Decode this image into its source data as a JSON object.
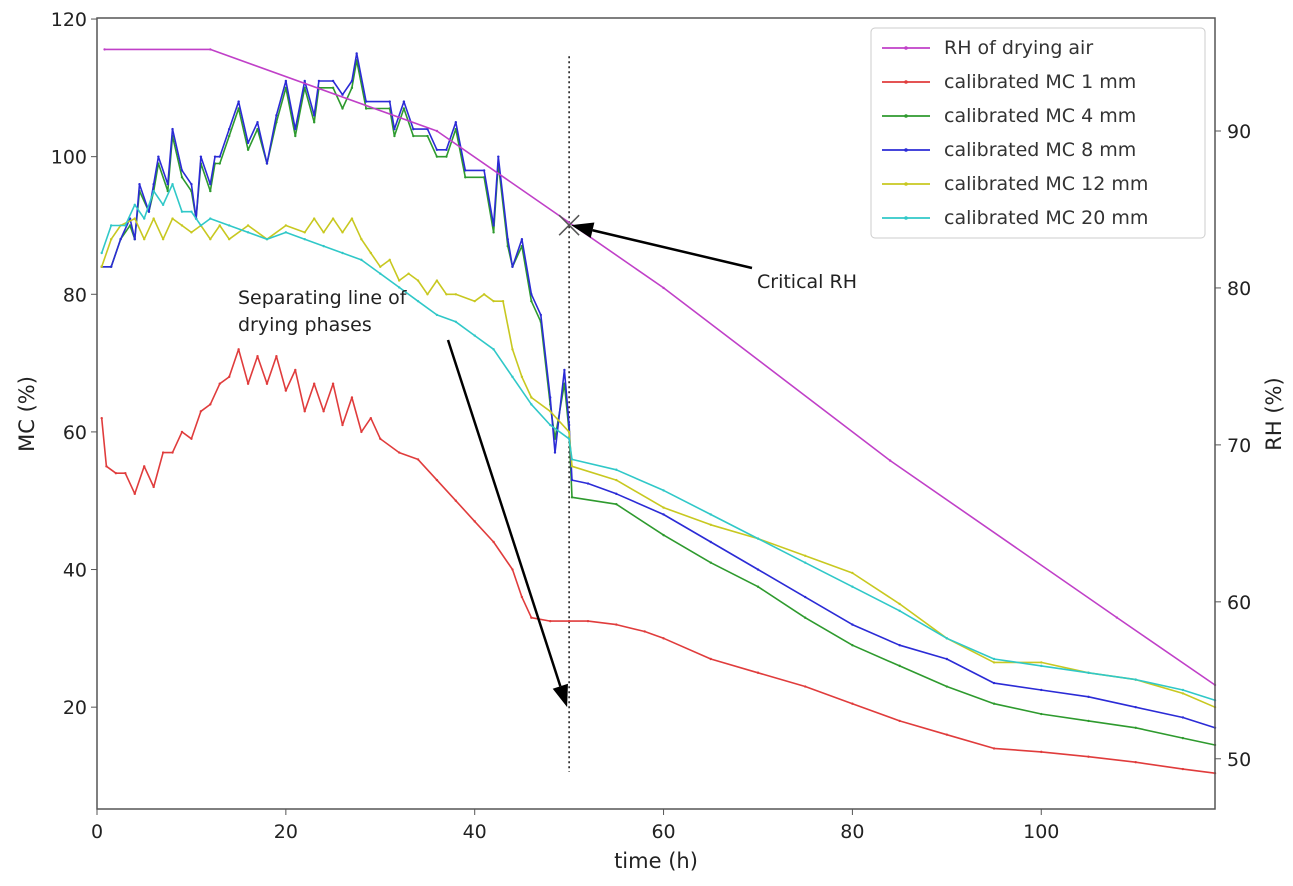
{
  "chart_data": {
    "type": "line",
    "xlabel": "time (h)",
    "ylabel": "MC (%)",
    "y2label": "RH (%)",
    "xlim": [
      0,
      118.4
    ],
    "ylim": [
      5.2,
      120.15
    ],
    "y2lim": [
      46.8,
      97.2
    ],
    "xticks": [
      0,
      20,
      40,
      60,
      80,
      100
    ],
    "yticks": [
      20,
      40,
      60,
      80,
      100,
      120
    ],
    "y2ticks": [
      50,
      60,
      70,
      80,
      90
    ],
    "grid": false,
    "legend_position": "top-right",
    "series": [
      {
        "name": "RH of drying air",
        "axis": "right",
        "color": "#c040c8",
        "points": [
          [
            0.8,
            95.2
          ],
          [
            12,
            95.2
          ],
          [
            36,
            90
          ],
          [
            60,
            80
          ],
          [
            84,
            69
          ],
          [
            108,
            59
          ],
          [
            118.4,
            54.7
          ]
        ]
      },
      {
        "name": "calibrated MC 1 mm",
        "axis": "left",
        "color": "#e03c3c",
        "points": [
          [
            0.5,
            62
          ],
          [
            1,
            55
          ],
          [
            2,
            54
          ],
          [
            3,
            54
          ],
          [
            4,
            51
          ],
          [
            5,
            55
          ],
          [
            6,
            52
          ],
          [
            7,
            57
          ],
          [
            8,
            57
          ],
          [
            9,
            60
          ],
          [
            10,
            59
          ],
          [
            11,
            63
          ],
          [
            12,
            64
          ],
          [
            13,
            67
          ],
          [
            14,
            68
          ],
          [
            15,
            72
          ],
          [
            16,
            67
          ],
          [
            17,
            71
          ],
          [
            18,
            67
          ],
          [
            19,
            71
          ],
          [
            20,
            66
          ],
          [
            21,
            69
          ],
          [
            22,
            63
          ],
          [
            23,
            67
          ],
          [
            24,
            63
          ],
          [
            25,
            67
          ],
          [
            26,
            61
          ],
          [
            27,
            65
          ],
          [
            28,
            60
          ],
          [
            29,
            62
          ],
          [
            30,
            59
          ],
          [
            32,
            57
          ],
          [
            34,
            56
          ],
          [
            36,
            53
          ],
          [
            38,
            50
          ],
          [
            40,
            47
          ],
          [
            42,
            44
          ],
          [
            44,
            40
          ],
          [
            45,
            36
          ],
          [
            46,
            33
          ],
          [
            48,
            32.5
          ],
          [
            50,
            32.5
          ],
          [
            52,
            32.5
          ],
          [
            55,
            32
          ],
          [
            58,
            31
          ],
          [
            60,
            30
          ],
          [
            65,
            27
          ],
          [
            70,
            25
          ],
          [
            75,
            23
          ],
          [
            80,
            20.5
          ],
          [
            85,
            18
          ],
          [
            90,
            16
          ],
          [
            95,
            14
          ],
          [
            100,
            13.5
          ],
          [
            105,
            12.8
          ],
          [
            110,
            12
          ],
          [
            115,
            11
          ],
          [
            118.4,
            10.4
          ]
        ]
      },
      {
        "name": "calibrated MC 4 mm",
        "axis": "left",
        "color": "#2e9a2e",
        "points": [
          [
            0.5,
            84
          ],
          [
            1.5,
            84
          ],
          [
            2.5,
            88
          ],
          [
            3.5,
            90
          ],
          [
            4,
            88
          ],
          [
            4.5,
            95
          ],
          [
            5.5,
            92
          ],
          [
            6,
            95
          ],
          [
            6.5,
            99
          ],
          [
            7.5,
            95
          ],
          [
            8,
            103
          ],
          [
            9,
            97
          ],
          [
            10,
            95
          ],
          [
            10.5,
            91
          ],
          [
            11,
            99
          ],
          [
            12,
            95
          ],
          [
            12.5,
            99
          ],
          [
            13,
            99
          ],
          [
            14,
            103
          ],
          [
            15,
            107
          ],
          [
            16,
            101
          ],
          [
            17,
            104
          ],
          [
            18,
            99
          ],
          [
            19,
            105
          ],
          [
            20,
            110
          ],
          [
            21,
            103
          ],
          [
            22,
            110
          ],
          [
            23,
            105
          ],
          [
            23.5,
            110
          ],
          [
            25,
            110
          ],
          [
            26,
            107
          ],
          [
            27,
            110
          ],
          [
            27.5,
            114
          ],
          [
            28.5,
            107
          ],
          [
            31,
            107
          ],
          [
            31.5,
            103
          ],
          [
            32.5,
            107
          ],
          [
            33.5,
            103
          ],
          [
            35,
            103
          ],
          [
            36,
            100
          ],
          [
            37,
            100
          ],
          [
            38,
            104
          ],
          [
            39,
            97
          ],
          [
            41,
            97
          ],
          [
            42,
            89
          ],
          [
            42.5,
            99
          ],
          [
            43.5,
            87
          ],
          [
            44,
            84
          ],
          [
            45,
            87
          ],
          [
            46,
            79
          ],
          [
            47,
            76
          ],
          [
            48,
            64
          ],
          [
            48.5,
            59
          ],
          [
            49.5,
            67
          ],
          [
            50,
            60
          ],
          [
            50.3,
            50.5
          ],
          [
            55,
            49.5
          ],
          [
            60,
            45
          ],
          [
            65,
            41
          ],
          [
            70,
            37.5
          ],
          [
            75,
            33
          ],
          [
            80,
            29
          ],
          [
            85,
            26
          ],
          [
            90,
            23
          ],
          [
            95,
            20.5
          ],
          [
            100,
            19
          ],
          [
            105,
            18
          ],
          [
            110,
            17
          ],
          [
            115,
            15.5
          ],
          [
            118.4,
            14.5
          ]
        ]
      },
      {
        "name": "calibrated MC 8 mm",
        "axis": "left",
        "color": "#2b2bd6",
        "points": [
          [
            0.5,
            84
          ],
          [
            1.5,
            84
          ],
          [
            2.5,
            88
          ],
          [
            3.5,
            91
          ],
          [
            4,
            88
          ],
          [
            4.5,
            96
          ],
          [
            5.5,
            92
          ],
          [
            6,
            96
          ],
          [
            6.5,
            100
          ],
          [
            7.5,
            96
          ],
          [
            8,
            104
          ],
          [
            9,
            98
          ],
          [
            10,
            96
          ],
          [
            10.5,
            91
          ],
          [
            11,
            100
          ],
          [
            12,
            96
          ],
          [
            12.5,
            100
          ],
          [
            13,
            100
          ],
          [
            14,
            104
          ],
          [
            15,
            108
          ],
          [
            16,
            102
          ],
          [
            17,
            105
          ],
          [
            18,
            99
          ],
          [
            19,
            106
          ],
          [
            20,
            111
          ],
          [
            21,
            104
          ],
          [
            22,
            111
          ],
          [
            23,
            106
          ],
          [
            23.5,
            111
          ],
          [
            25,
            111
          ],
          [
            26,
            109
          ],
          [
            27,
            111
          ],
          [
            27.5,
            115
          ],
          [
            28.5,
            108
          ],
          [
            31,
            108
          ],
          [
            31.5,
            104
          ],
          [
            32.5,
            108
          ],
          [
            33.5,
            104
          ],
          [
            35,
            104
          ],
          [
            36,
            101
          ],
          [
            37,
            101
          ],
          [
            38,
            105
          ],
          [
            39,
            98
          ],
          [
            41,
            98
          ],
          [
            42,
            90
          ],
          [
            42.5,
            100
          ],
          [
            43.5,
            88
          ],
          [
            44,
            84
          ],
          [
            45,
            88
          ],
          [
            46,
            80
          ],
          [
            47,
            77
          ],
          [
            48,
            65
          ],
          [
            48.5,
            57
          ],
          [
            49.5,
            69
          ],
          [
            50,
            61
          ],
          [
            50.3,
            53
          ],
          [
            52,
            52.5
          ],
          [
            55,
            51
          ],
          [
            60,
            48
          ],
          [
            65,
            44
          ],
          [
            70,
            40
          ],
          [
            75,
            36
          ],
          [
            80,
            32
          ],
          [
            85,
            29
          ],
          [
            90,
            27
          ],
          [
            95,
            23.5
          ],
          [
            100,
            22.5
          ],
          [
            105,
            21.5
          ],
          [
            110,
            20
          ],
          [
            115,
            18.5
          ],
          [
            118.4,
            17
          ]
        ]
      },
      {
        "name": "calibrated MC 12 mm",
        "axis": "left",
        "color": "#c8c820",
        "points": [
          [
            0.5,
            84
          ],
          [
            1.5,
            88
          ],
          [
            2.5,
            90
          ],
          [
            4,
            91
          ],
          [
            5,
            88
          ],
          [
            6,
            91
          ],
          [
            7,
            88
          ],
          [
            8,
            91
          ],
          [
            9,
            90
          ],
          [
            10,
            89
          ],
          [
            11,
            90
          ],
          [
            12,
            88
          ],
          [
            13,
            90
          ],
          [
            14,
            88
          ],
          [
            16,
            90
          ],
          [
            18,
            88
          ],
          [
            20,
            90
          ],
          [
            22,
            89
          ],
          [
            23,
            91
          ],
          [
            24,
            89
          ],
          [
            25,
            91
          ],
          [
            26,
            89
          ],
          [
            27,
            91
          ],
          [
            28,
            88
          ],
          [
            29,
            86
          ],
          [
            30,
            84
          ],
          [
            31,
            85
          ],
          [
            32,
            82
          ],
          [
            33,
            83
          ],
          [
            34,
            82
          ],
          [
            35,
            80
          ],
          [
            36,
            82
          ],
          [
            37,
            80
          ],
          [
            38,
            80
          ],
          [
            40,
            79
          ],
          [
            41,
            80
          ],
          [
            42,
            79
          ],
          [
            43,
            79
          ],
          [
            44,
            72
          ],
          [
            45,
            68
          ],
          [
            46,
            65
          ],
          [
            48,
            63
          ],
          [
            50,
            60
          ],
          [
            50.3,
            55
          ],
          [
            55,
            53
          ],
          [
            60,
            49
          ],
          [
            65,
            46.5
          ],
          [
            70,
            44.5
          ],
          [
            75,
            42
          ],
          [
            80,
            39.5
          ],
          [
            85,
            35
          ],
          [
            90,
            30
          ],
          [
            95,
            26.5
          ],
          [
            100,
            26.5
          ],
          [
            105,
            25
          ],
          [
            110,
            24
          ],
          [
            115,
            22
          ],
          [
            118.4,
            20
          ]
        ]
      },
      {
        "name": "calibrated MC 20 mm",
        "axis": "left",
        "color": "#30c8c8",
        "points": [
          [
            0.5,
            86
          ],
          [
            1.5,
            90
          ],
          [
            3,
            90
          ],
          [
            4,
            93
          ],
          [
            5,
            91
          ],
          [
            6,
            95
          ],
          [
            7,
            93
          ],
          [
            8,
            96
          ],
          [
            9,
            92
          ],
          [
            10,
            92
          ],
          [
            11,
            90
          ],
          [
            12,
            91
          ],
          [
            14,
            90
          ],
          [
            16,
            89
          ],
          [
            18,
            88
          ],
          [
            20,
            89
          ],
          [
            22,
            88
          ],
          [
            24,
            87
          ],
          [
            26,
            86
          ],
          [
            28,
            85
          ],
          [
            30,
            83
          ],
          [
            32,
            81
          ],
          [
            34,
            79
          ],
          [
            36,
            77
          ],
          [
            38,
            76
          ],
          [
            40,
            74
          ],
          [
            42,
            72
          ],
          [
            44,
            68
          ],
          [
            46,
            64
          ],
          [
            48,
            61
          ],
          [
            50,
            59
          ],
          [
            50.3,
            56
          ],
          [
            55,
            54.5
          ],
          [
            60,
            51.5
          ],
          [
            65,
            48
          ],
          [
            70,
            44.5
          ],
          [
            75,
            41
          ],
          [
            80,
            37.5
          ],
          [
            85,
            34
          ],
          [
            90,
            30
          ],
          [
            95,
            27
          ],
          [
            100,
            26
          ],
          [
            105,
            25
          ],
          [
            110,
            24
          ],
          [
            115,
            22.5
          ],
          [
            118.4,
            21
          ]
        ]
      }
    ],
    "annotations": [
      {
        "text": "Critical RH",
        "x": 50,
        "rh": 84
      },
      {
        "text_lines": [
          "Separating line of",
          "drying phases"
        ],
        "x": 50,
        "mc": 20
      }
    ],
    "vline": {
      "x": 50,
      "style": "dotted"
    }
  }
}
